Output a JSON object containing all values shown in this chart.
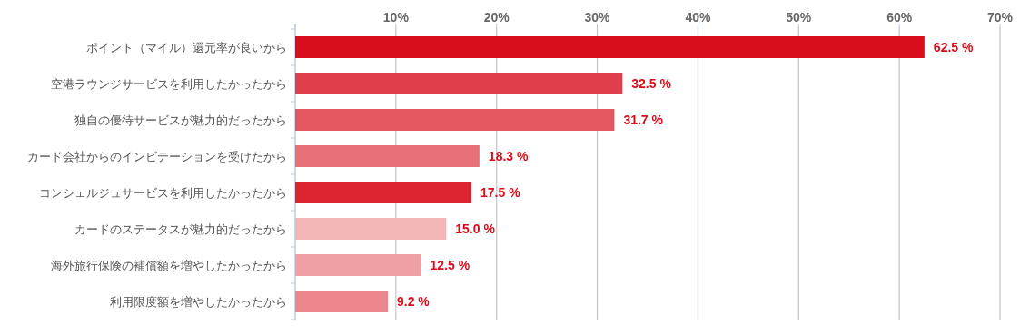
{
  "chart_data": {
    "type": "bar",
    "orientation": "horizontal",
    "categories": [
      "ポイント（マイル）還元率が良いから",
      "空港ラウンジサービスを利用したかったから",
      "独自の優待サービスが魅力的だったから",
      "カード会社からのインビテーションを受けたから",
      "コンシェルジュサービスを利用したかったから",
      "カードのステータスが魅力的だったから",
      "海外旅行保険の補償額を増やしたかったから",
      "利用限度額を増やしたかったから"
    ],
    "values": [
      62.5,
      32.5,
      31.7,
      18.3,
      17.5,
      15.0,
      12.5,
      9.2
    ],
    "colors": [
      "#d90d1b",
      "#e03e4a",
      "#e55760",
      "#e87077",
      "#dd2532",
      "#f2b6b9",
      "#efa0a4",
      "#ed868c"
    ],
    "value_labels": [
      "62.5 %",
      "32.5 %",
      "31.7 %",
      "18.3 %",
      "17.5 %",
      "15.0 %",
      "12.5 %",
      "9.2 %"
    ],
    "xlim": [
      0,
      70
    ],
    "xticks": [
      {
        "value": 0,
        "label": null
      },
      {
        "value": 10,
        "label": "10%"
      },
      {
        "value": 20,
        "label": "20%"
      },
      {
        "value": 30,
        "label": "30%"
      },
      {
        "value": 40,
        "label": "40%"
      },
      {
        "value": 50,
        "label": "50%"
      },
      {
        "value": 60,
        "label": "60%"
      },
      {
        "value": 70,
        "label": "70%"
      }
    ],
    "grid": "x"
  }
}
